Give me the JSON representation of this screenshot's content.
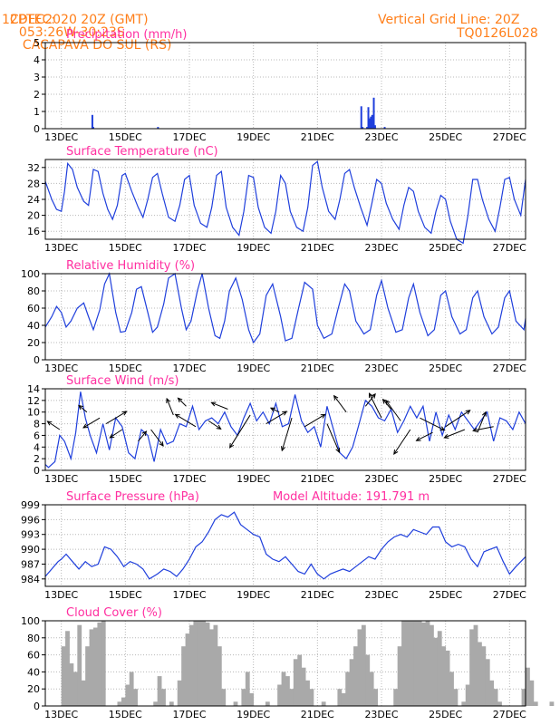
{
  "header": {
    "source": "CPTEC:",
    "coords": "053:26W-30:23S",
    "station": "CACAPAVA DO SUL (RS)",
    "datetime": "12DEC2020 20Z (GMT)",
    "grid_note": "Vertical Grid Line: 20Z",
    "model_id": "TQ0126L028"
  },
  "colors": {
    "header_text": "#ff7f1a",
    "panel_title": "#ff2fa0",
    "series_line": "#1f3fdc",
    "cloud_bars": "#a9a9a9",
    "wind_arrows": "#000000"
  },
  "chart_data": [
    {
      "id": "precip",
      "type": "bar",
      "title": "Precipitation (mm/h)",
      "xlim": [
        12.5,
        27.5
      ],
      "ylim": [
        0,
        5
      ],
      "yticks": [
        "0",
        "1",
        "2",
        "3",
        "4",
        "5"
      ],
      "xticks": [
        "13DEC",
        "15DEC",
        "17DEC",
        "19DEC",
        "21DEC",
        "23DEC",
        "25DEC",
        "27DEC"
      ],
      "grid": true,
      "x": [
        13.97,
        14.0,
        16.02,
        22.37,
        22.41,
        22.55,
        22.59,
        22.63,
        22.67,
        22.71,
        22.76,
        22.8,
        23.1
      ],
      "values": [
        0.8,
        0.1,
        0.1,
        1.3,
        0.1,
        0.1,
        1.25,
        0.6,
        0.7,
        0.8,
        1.8,
        0.2,
        0.1
      ]
    },
    {
      "id": "temperature",
      "type": "line",
      "title": "Surface Temperature (nC)",
      "xlim": [
        12.5,
        27.5
      ],
      "ylim": [
        14,
        34
      ],
      "yticks": [
        "16",
        "20",
        "24",
        "28",
        "32"
      ],
      "xticks": [
        "13DEC",
        "15DEC",
        "17DEC",
        "19DEC",
        "21DEC",
        "23DEC",
        "25DEC",
        "27DEC"
      ],
      "grid": true,
      "x": [
        12.5,
        12.7,
        12.85,
        13.0,
        13.1,
        13.2,
        13.35,
        13.5,
        13.7,
        13.85,
        14.0,
        14.15,
        14.3,
        14.45,
        14.6,
        14.75,
        14.9,
        15.0,
        15.2,
        15.4,
        15.55,
        15.7,
        15.85,
        16.0,
        16.15,
        16.35,
        16.55,
        16.7,
        16.85,
        17.0,
        17.15,
        17.35,
        17.55,
        17.7,
        17.85,
        18.0,
        18.15,
        18.35,
        18.55,
        18.7,
        18.85,
        19.0,
        19.15,
        19.35,
        19.55,
        19.7,
        19.85,
        20.0,
        20.15,
        20.35,
        20.55,
        20.7,
        20.85,
        21.0,
        21.15,
        21.35,
        21.55,
        21.7,
        21.85,
        22.0,
        22.15,
        22.35,
        22.55,
        22.7,
        22.85,
        23.0,
        23.15,
        23.35,
        23.55,
        23.7,
        23.85,
        24.0,
        24.15,
        24.35,
        24.55,
        24.7,
        24.85,
        25.0,
        25.15,
        25.35,
        25.55,
        25.7,
        25.85,
        26.0,
        26.15,
        26.35,
        26.55,
        26.7,
        26.85,
        27.0,
        27.15,
        27.35,
        27.5
      ],
      "values": [
        28.5,
        24.0,
        21.5,
        21.0,
        26.0,
        33.0,
        31.5,
        27.0,
        23.5,
        22.5,
        31.5,
        31.0,
        25.5,
        21.5,
        19.0,
        22.5,
        30.0,
        30.5,
        26.0,
        22.0,
        19.5,
        24.0,
        29.5,
        30.5,
        25.5,
        19.5,
        18.5,
        22.5,
        29.0,
        30.0,
        22.5,
        18.0,
        17.0,
        22.0,
        30.0,
        31.0,
        22.0,
        17.0,
        15.0,
        21.0,
        30.0,
        29.5,
        22.0,
        17.0,
        15.5,
        21.0,
        30.0,
        28.0,
        21.0,
        17.0,
        16.0,
        22.0,
        32.5,
        33.5,
        27.0,
        21.0,
        19.0,
        24.0,
        30.5,
        31.5,
        27.0,
        22.0,
        17.5,
        23.0,
        29.0,
        28.0,
        23.0,
        19.0,
        16.5,
        22.5,
        27.0,
        26.0,
        21.0,
        17.0,
        15.5,
        21.0,
        25.0,
        24.0,
        18.5,
        14.0,
        13.0,
        20.0,
        29.0,
        29.0,
        24.0,
        19.0,
        16.0,
        22.0,
        29.0,
        29.5,
        24.0,
        20.0,
        29.0
      ]
    },
    {
      "id": "humidity",
      "type": "line",
      "title": "Relative Humidity (%)",
      "xlim": [
        12.5,
        27.5
      ],
      "ylim": [
        0,
        100
      ],
      "yticks": [
        "0",
        "20",
        "40",
        "60",
        "80",
        "100"
      ],
      "xticks": [
        "13DEC",
        "15DEC",
        "17DEC",
        "19DEC",
        "21DEC",
        "23DEC",
        "25DEC",
        "27DEC"
      ],
      "grid": true,
      "x": [
        12.5,
        12.7,
        12.85,
        13.0,
        13.15,
        13.3,
        13.5,
        13.7,
        13.85,
        14.0,
        14.2,
        14.35,
        14.5,
        14.7,
        14.85,
        15.0,
        15.2,
        15.35,
        15.5,
        15.7,
        15.85,
        16.0,
        16.2,
        16.35,
        16.55,
        16.75,
        16.9,
        17.05,
        17.25,
        17.4,
        17.6,
        17.8,
        17.95,
        18.1,
        18.25,
        18.45,
        18.65,
        18.85,
        19.0,
        19.2,
        19.4,
        19.6,
        19.85,
        20.0,
        20.2,
        20.4,
        20.6,
        20.85,
        21.0,
        21.2,
        21.45,
        21.65,
        21.85,
        22.0,
        22.2,
        22.45,
        22.65,
        22.85,
        23.0,
        23.2,
        23.45,
        23.65,
        23.85,
        24.0,
        24.2,
        24.45,
        24.65,
        24.85,
        25.0,
        25.2,
        25.45,
        25.65,
        25.85,
        26.0,
        26.2,
        26.45,
        26.65,
        26.85,
        27.0,
        27.2,
        27.45,
        27.5
      ],
      "values": [
        38,
        50,
        62,
        55,
        38,
        45,
        60,
        66,
        50,
        35,
        58,
        88,
        100,
        55,
        32,
        33,
        55,
        82,
        85,
        55,
        32,
        38,
        65,
        95,
        100,
        60,
        35,
        45,
        80,
        100,
        60,
        28,
        25,
        45,
        80,
        95,
        70,
        35,
        20,
        30,
        75,
        88,
        50,
        22,
        25,
        58,
        90,
        82,
        40,
        25,
        30,
        60,
        88,
        80,
        45,
        30,
        35,
        75,
        92,
        60,
        32,
        35,
        72,
        88,
        55,
        28,
        35,
        75,
        80,
        50,
        30,
        35,
        72,
        80,
        50,
        30,
        38,
        72,
        80,
        45,
        35,
        48
      ]
    },
    {
      "id": "wind",
      "type": "line",
      "title": "Surface Wind (m/s)",
      "xlim": [
        12.5,
        27.5
      ],
      "ylim": [
        0,
        14
      ],
      "yticks": [
        "0",
        "2",
        "4",
        "6",
        "8",
        "10",
        "12",
        "14"
      ],
      "xticks": [
        "13DEC",
        "15DEC",
        "17DEC",
        "19DEC",
        "21DEC",
        "23DEC",
        "25DEC",
        "27DEC"
      ],
      "grid": true,
      "x": [
        12.5,
        12.6,
        12.8,
        12.95,
        13.1,
        13.3,
        13.45,
        13.6,
        13.75,
        13.9,
        14.1,
        14.3,
        14.5,
        14.7,
        14.9,
        15.1,
        15.3,
        15.5,
        15.7,
        15.9,
        16.1,
        16.3,
        16.5,
        16.7,
        16.9,
        17.1,
        17.3,
        17.5,
        17.7,
        17.9,
        18.1,
        18.3,
        18.5,
        18.7,
        18.9,
        19.1,
        19.3,
        19.5,
        19.7,
        19.9,
        20.1,
        20.3,
        20.5,
        20.7,
        20.9,
        21.1,
        21.3,
        21.5,
        21.7,
        21.9,
        22.1,
        22.3,
        22.5,
        22.7,
        22.9,
        23.1,
        23.3,
        23.5,
        23.7,
        23.9,
        24.1,
        24.3,
        24.5,
        24.7,
        24.9,
        25.1,
        25.3,
        25.5,
        25.7,
        25.9,
        26.1,
        26.3,
        26.5,
        26.7,
        26.9,
        27.1,
        27.3,
        27.5
      ],
      "values": [
        1.0,
        0.5,
        1.5,
        6.0,
        5.0,
        2.0,
        6.5,
        13.5,
        9.0,
        6.0,
        3.0,
        8.0,
        3.5,
        9.0,
        7.5,
        3.0,
        2.0,
        7.0,
        6.0,
        1.5,
        7.0,
        4.5,
        5.0,
        8.0,
        7.5,
        11.0,
        7.0,
        8.5,
        9.0,
        8.0,
        10.0,
        7.5,
        6.0,
        9.0,
        11.5,
        8.5,
        10.0,
        8.0,
        11.5,
        7.5,
        8.0,
        13.0,
        8.5,
        6.5,
        7.5,
        4.0,
        11.0,
        7.0,
        3.0,
        2.0,
        4.0,
        8.0,
        12.0,
        11.0,
        9.0,
        8.5,
        10.5,
        6.5,
        8.5,
        11.0,
        9.0,
        11.0,
        5.0,
        10.0,
        6.0,
        9.5,
        7.0,
        10.0,
        8.5,
        7.0,
        8.5,
        10.0,
        5.0,
        9.0,
        8.5,
        7.0,
        10.0,
        8.0
      ],
      "arrows": [
        {
          "x": 12.95,
          "y": 7.0,
          "u": -1.5,
          "v": 1.0
        },
        {
          "x": 13.8,
          "y": 10.0,
          "u": -1.0,
          "v": 0.8
        },
        {
          "x": 14.2,
          "y": 9.0,
          "u": -2.0,
          "v": -1.2
        },
        {
          "x": 14.4,
          "y": 8.0,
          "u": 2.5,
          "v": 1.5
        },
        {
          "x": 14.9,
          "y": 7.0,
          "u": -1.5,
          "v": -1.0
        },
        {
          "x": 15.4,
          "y": 5.0,
          "u": 1.0,
          "v": 1.2
        },
        {
          "x": 15.8,
          "y": 7.0,
          "u": 1.5,
          "v": -2.0
        },
        {
          "x": 16.5,
          "y": 9.5,
          "u": -0.8,
          "v": 2.0
        },
        {
          "x": 16.9,
          "y": 11.0,
          "u": -1.0,
          "v": 1.0
        },
        {
          "x": 17.2,
          "y": 7.5,
          "u": -2.5,
          "v": 1.5
        },
        {
          "x": 17.6,
          "y": 8.5,
          "u": 1.5,
          "v": -1.0
        },
        {
          "x": 18.2,
          "y": 10.5,
          "u": -2.0,
          "v": 0.8
        },
        {
          "x": 18.9,
          "y": 9.5,
          "u": -2.5,
          "v": -4.0
        },
        {
          "x": 19.4,
          "y": 8.0,
          "u": 2.5,
          "v": 1.5
        },
        {
          "x": 19.8,
          "y": 10.0,
          "u": -1.0,
          "v": 0.5
        },
        {
          "x": 20.2,
          "y": 9.0,
          "u": -1.2,
          "v": -4.0
        },
        {
          "x": 20.6,
          "y": 7.5,
          "u": 2.5,
          "v": 1.5
        },
        {
          "x": 21.3,
          "y": 8.0,
          "u": 1.5,
          "v": -3.5
        },
        {
          "x": 21.9,
          "y": 10.0,
          "u": -1.5,
          "v": 2.0
        },
        {
          "x": 22.5,
          "y": 11.0,
          "u": 1.2,
          "v": 1.5
        },
        {
          "x": 23.0,
          "y": 9.0,
          "u": -1.5,
          "v": 3.0
        },
        {
          "x": 23.3,
          "y": 10.5,
          "u": -1.0,
          "v": 1.2
        },
        {
          "x": 23.6,
          "y": 8.5,
          "u": -1.8,
          "v": 2.5
        },
        {
          "x": 23.9,
          "y": 7.0,
          "u": -2.0,
          "v": -3.0
        },
        {
          "x": 24.2,
          "y": 9.0,
          "u": 3.0,
          "v": -1.5
        },
        {
          "x": 24.6,
          "y": 6.5,
          "u": -2.0,
          "v": -1.0
        },
        {
          "x": 25.0,
          "y": 7.5,
          "u": 3.0,
          "v": 2.0
        },
        {
          "x": 25.6,
          "y": 7.0,
          "u": -2.5,
          "v": -1.0
        },
        {
          "x": 26.0,
          "y": 6.5,
          "u": 1.0,
          "v": 2.5
        },
        {
          "x": 26.5,
          "y": 7.5,
          "u": -2.5,
          "v": -0.5
        }
      ]
    },
    {
      "id": "pressure",
      "type": "line",
      "title": "Surface Pressure (hPa)",
      "annotation": "Model Altitude: 191.791 m",
      "xlim": [
        12.5,
        27.5
      ],
      "ylim": [
        982.5,
        999
      ],
      "yticks": [
        "984",
        "987",
        "990",
        "993",
        "996",
        "999"
      ],
      "xticks": [
        "13DEC",
        "15DEC",
        "17DEC",
        "19DEC",
        "21DEC",
        "23DEC",
        "25DEC",
        "27DEC"
      ],
      "grid": true,
      "x": [
        12.5,
        12.7,
        12.9,
        13.0,
        13.15,
        13.35,
        13.55,
        13.75,
        13.95,
        14.15,
        14.35,
        14.55,
        14.75,
        14.95,
        15.15,
        15.35,
        15.55,
        15.75,
        16.0,
        16.2,
        16.4,
        16.6,
        16.8,
        17.0,
        17.2,
        17.4,
        17.6,
        17.8,
        18.0,
        18.2,
        18.4,
        18.6,
        18.8,
        19.0,
        19.2,
        19.4,
        19.6,
        19.8,
        20.0,
        20.2,
        20.4,
        20.6,
        20.8,
        21.0,
        21.2,
        21.4,
        21.6,
        21.8,
        22.0,
        22.2,
        22.4,
        22.6,
        22.8,
        23.0,
        23.2,
        23.4,
        23.6,
        23.8,
        24.0,
        24.2,
        24.4,
        24.6,
        24.8,
        25.0,
        25.2,
        25.4,
        25.6,
        25.8,
        26.0,
        26.2,
        26.4,
        26.6,
        26.8,
        27.0,
        27.2,
        27.5
      ],
      "values": [
        984.5,
        986.0,
        987.5,
        988.0,
        989.0,
        987.5,
        986.0,
        987.5,
        986.5,
        987.0,
        990.5,
        990.0,
        988.5,
        986.5,
        987.5,
        987.0,
        986.0,
        984.0,
        985.0,
        986.0,
        985.5,
        984.5,
        986.0,
        988.0,
        990.5,
        991.5,
        993.5,
        996.0,
        997.0,
        996.5,
        997.5,
        995.0,
        994.0,
        993.0,
        992.5,
        989.0,
        988.0,
        987.5,
        988.5,
        987.0,
        985.5,
        985.0,
        987.0,
        985.0,
        984.0,
        985.0,
        985.5,
        986.0,
        985.5,
        986.5,
        987.5,
        988.5,
        988.0,
        990.0,
        991.5,
        992.5,
        993.0,
        992.5,
        994.0,
        993.5,
        993.0,
        994.5,
        994.5,
        991.5,
        990.5,
        991.0,
        990.5,
        988.0,
        986.5,
        989.5,
        990.0,
        990.5,
        987.5,
        985.0,
        986.5,
        988.5
      ]
    },
    {
      "id": "cloud",
      "type": "bar",
      "title": "Cloud Cover (%)",
      "xlim": [
        12.5,
        27.5
      ],
      "ylim": [
        0,
        100
      ],
      "yticks": [
        "0",
        "20",
        "40",
        "60",
        "80",
        "100"
      ],
      "xticks": [
        "13DEC",
        "15DEC",
        "17DEC",
        "19DEC",
        "21DEC",
        "23DEC",
        "25DEC",
        "27DEC"
      ],
      "grid": true,
      "x_start": 12.5,
      "x_step": 0.125,
      "values": [
        0,
        0,
        0,
        0,
        70,
        88,
        50,
        40,
        95,
        30,
        70,
        90,
        92,
        98,
        100,
        0,
        0,
        0,
        5,
        10,
        25,
        40,
        20,
        0,
        0,
        0,
        0,
        5,
        35,
        20,
        0,
        5,
        0,
        30,
        70,
        85,
        95,
        100,
        100,
        100,
        98,
        90,
        95,
        70,
        20,
        0,
        0,
        5,
        0,
        20,
        40,
        15,
        0,
        0,
        0,
        5,
        0,
        0,
        25,
        40,
        35,
        20,
        55,
        60,
        45,
        30,
        20,
        0,
        0,
        5,
        0,
        0,
        0,
        20,
        15,
        40,
        55,
        70,
        90,
        95,
        60,
        40,
        20,
        0,
        0,
        0,
        0,
        20,
        70,
        100,
        100,
        100,
        100,
        100,
        98,
        100,
        95,
        80,
        88,
        70,
        65,
        40,
        20,
        0,
        5,
        25,
        90,
        95,
        75,
        70,
        55,
        30,
        20,
        5,
        0,
        0,
        0,
        0,
        0,
        20,
        45,
        30,
        5,
        0,
        0,
        0,
        5,
        0,
        0,
        0,
        0,
        25,
        0,
        0,
        0,
        10,
        0,
        0,
        0,
        20,
        40,
        10,
        0,
        0,
        10,
        35,
        65,
        95,
        0
      ]
    }
  ]
}
